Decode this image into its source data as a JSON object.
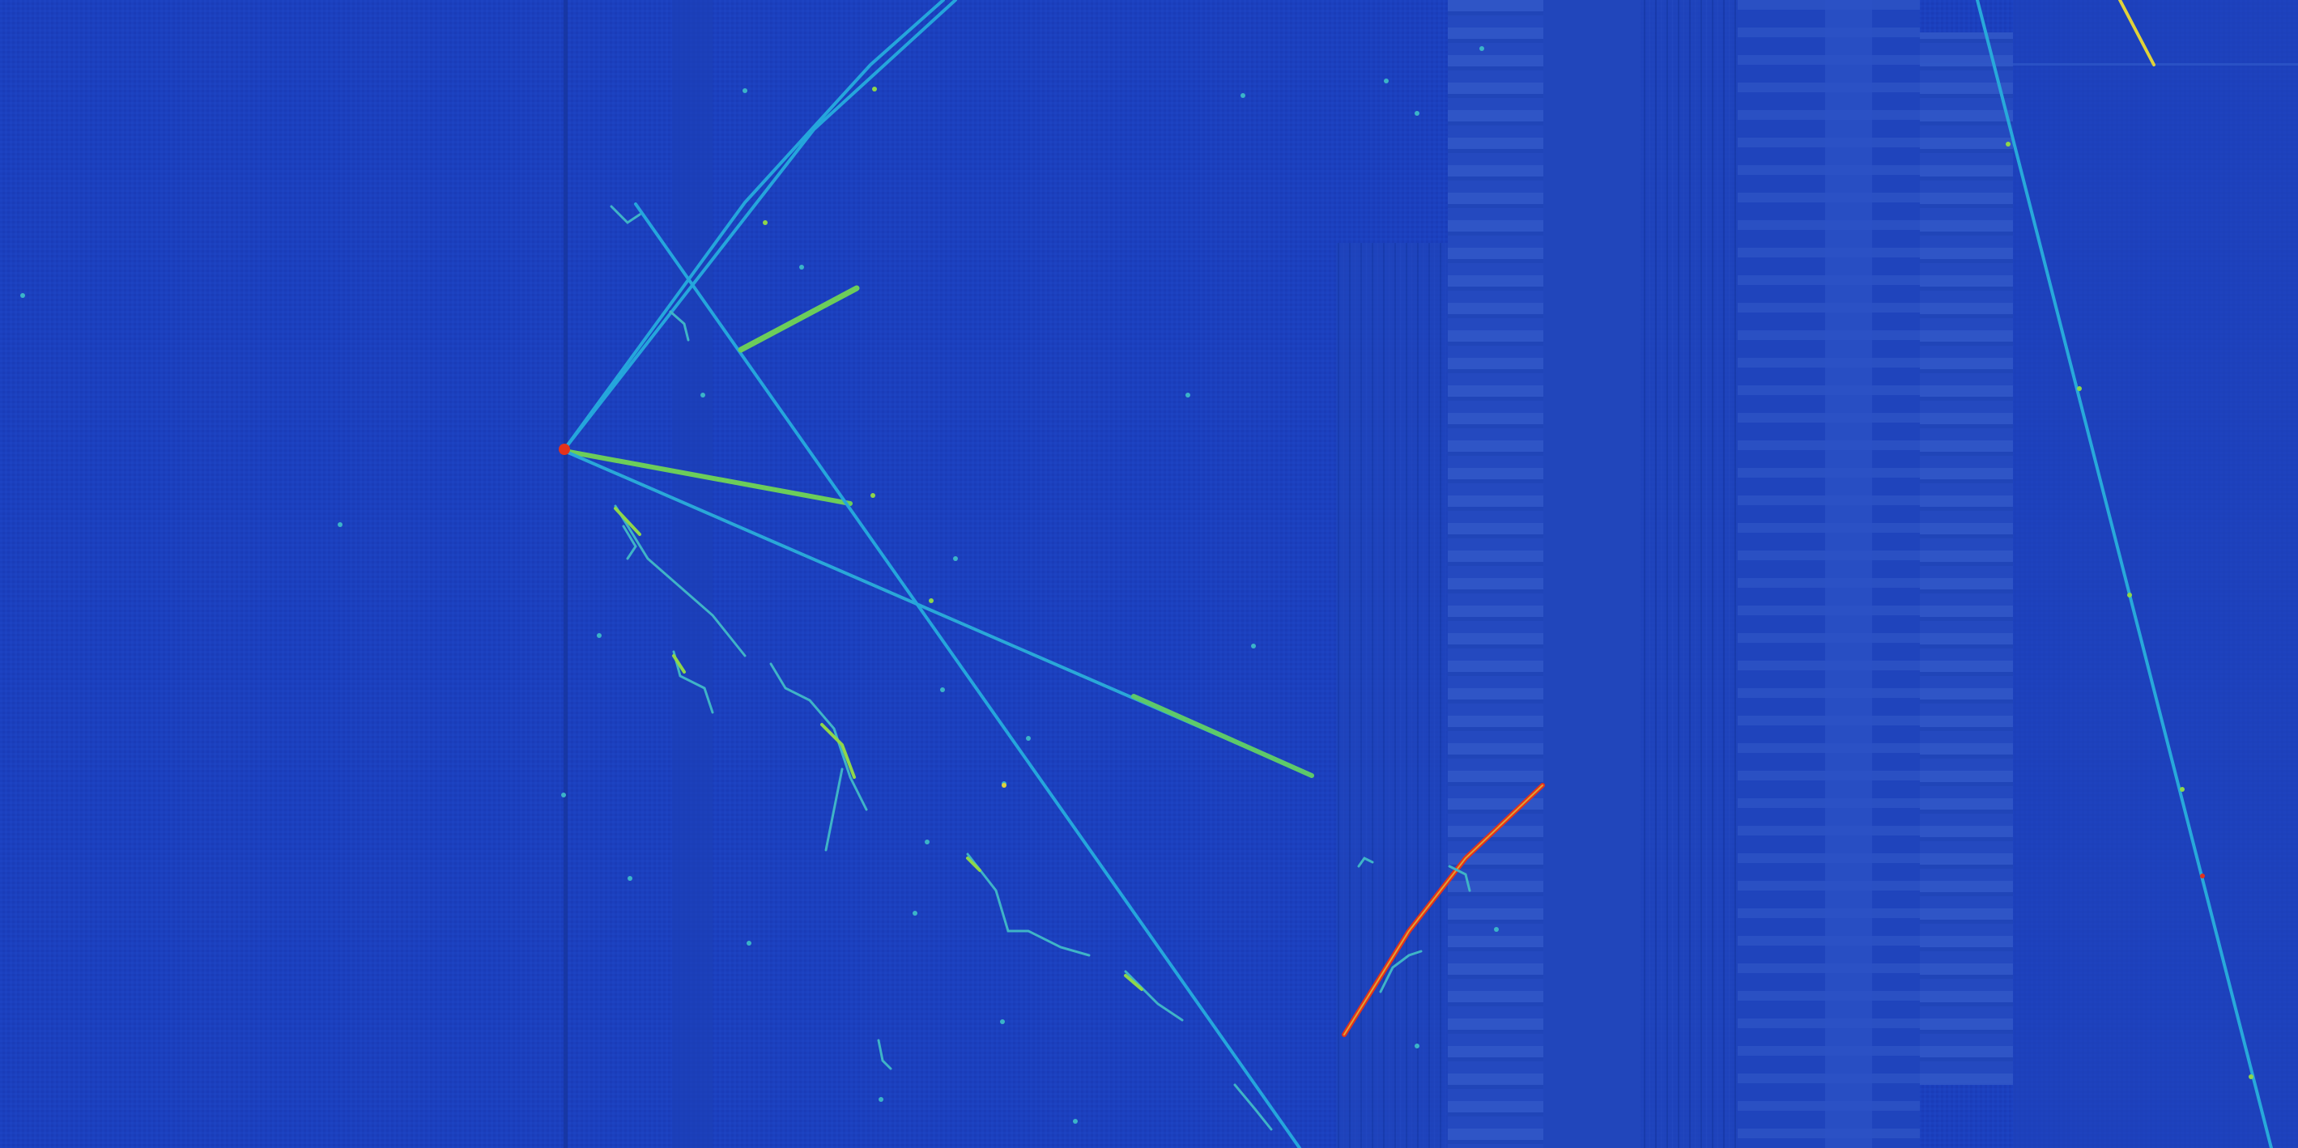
{
  "image": {
    "kind": "particle-detector-event-display",
    "colormap": [
      "#1b3fbd",
      "#1e8fd6",
      "#3cc3a8",
      "#8fd64a",
      "#e0d23a",
      "#e23a1a"
    ],
    "background_color": "#1a3fbd",
    "track_color": "#26a6dc",
    "shower_color": "#73d35a",
    "hot_color": "#e3321b"
  }
}
